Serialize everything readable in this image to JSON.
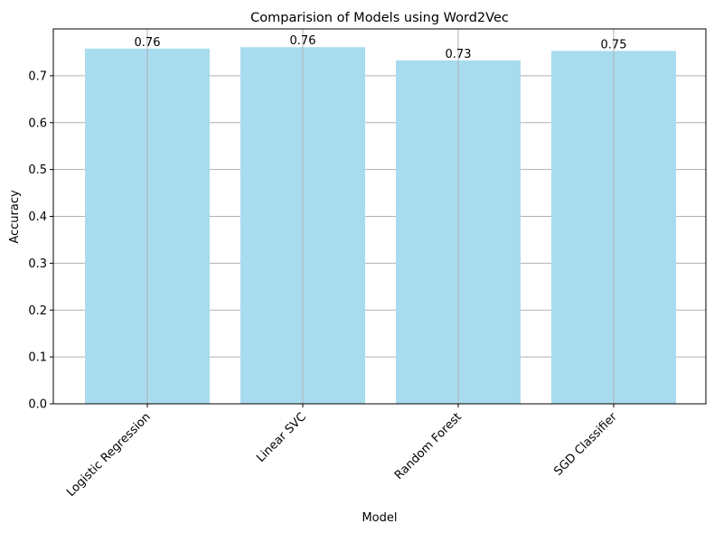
{
  "chart_data": {
    "type": "bar",
    "title": "Comparision of Models using Word2Vec",
    "xlabel": "Model",
    "ylabel": "Accuracy",
    "categories": [
      "Logistic Regression",
      "Linear SVC",
      "Random Forest",
      "SGD Classifier"
    ],
    "values": [
      0.758,
      0.761,
      0.733,
      0.753
    ],
    "data_labels": [
      "0.76",
      "0.76",
      "0.73",
      "0.75"
    ],
    "ylim": [
      0,
      0.8
    ],
    "yticks": [
      "0.0",
      "0.1",
      "0.2",
      "0.3",
      "0.4",
      "0.5",
      "0.6",
      "0.7"
    ],
    "grid": true,
    "bar_color": "#a9dbef",
    "grid_color": "#b0b0b0",
    "xtick_rotation_deg": 45
  }
}
